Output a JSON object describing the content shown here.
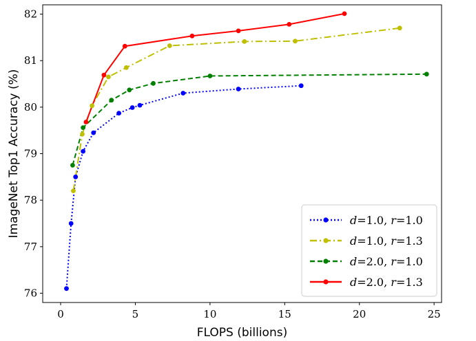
{
  "chart_data": {
    "type": "line",
    "title": "",
    "xlabel": "FLOPS (billions)",
    "ylabel": "ImageNet Top1 Accuracy (%)",
    "xlim": [
      -1.2,
      25.5
    ],
    "ylim": [
      75.8,
      82.2
    ],
    "xticks": [
      0,
      5,
      10,
      15,
      20,
      25
    ],
    "yticks": [
      76,
      77,
      78,
      79,
      80,
      81,
      82
    ],
    "grid": false,
    "legend_position": "lower-right",
    "series": [
      {
        "name": "d=1.0, r=1.0",
        "legend": {
          "var1": "d",
          "val1": "=1.0, ",
          "var2": "r",
          "val2": "=1.0"
        },
        "color": "#0000ff",
        "linestyle": "dotted",
        "x": [
          0.39,
          0.7,
          1.0,
          1.5,
          2.2,
          3.9,
          4.8,
          5.3,
          8.2,
          11.9,
          16.1
        ],
        "y": [
          76.1,
          77.5,
          78.5,
          79.05,
          79.45,
          79.87,
          79.99,
          80.04,
          80.3,
          80.39,
          80.46
        ]
      },
      {
        "name": "d=1.0, r=1.3",
        "legend": {
          "var1": "d",
          "val1": "=1.0, ",
          "var2": "r",
          "val2": "=1.3"
        },
        "color": "#bfbf00",
        "linestyle": "dashdot",
        "x": [
          0.85,
          1.45,
          2.1,
          3.2,
          4.4,
          7.3,
          12.3,
          15.7,
          22.7
        ],
        "y": [
          78.2,
          79.42,
          80.03,
          80.65,
          80.85,
          81.32,
          81.41,
          81.42,
          81.7
        ]
      },
      {
        "name": "d=2.0, r=1.0",
        "legend": {
          "var1": "d",
          "val1": "=2.0, ",
          "var2": "r",
          "val2": "=1.0"
        },
        "color": "#008000",
        "linestyle": "dashed",
        "x": [
          0.8,
          1.5,
          3.4,
          4.6,
          6.2,
          10.0,
          24.5
        ],
        "y": [
          78.75,
          79.56,
          80.15,
          80.37,
          80.51,
          80.67,
          80.71
        ]
      },
      {
        "name": "d=2.0, r=1.3",
        "legend": {
          "var1": "d",
          "val1": "=2.0, ",
          "var2": "r",
          "val2": "=1.3"
        },
        "color": "#ff0000",
        "linestyle": "solid",
        "x": [
          1.7,
          2.9,
          4.3,
          8.8,
          11.9,
          15.3,
          19.0
        ],
        "y": [
          79.68,
          80.69,
          81.31,
          81.53,
          81.64,
          81.78,
          82.01
        ]
      }
    ]
  }
}
